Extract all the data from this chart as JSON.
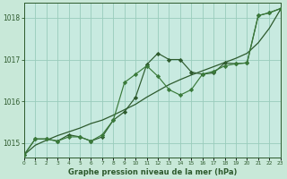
{
  "title": "Graphe pression niveau de la mer (hPa)",
  "background_color": "#c8e8d8",
  "plot_bg_color": "#c8eae0",
  "grid_color": "#99ccbb",
  "line_color_dark": "#2d5a2d",
  "line_color_med": "#3a7a3a",
  "xlim": [
    0,
    23
  ],
  "ylim": [
    1014.65,
    1018.35
  ],
  "yticks": [
    1015,
    1016,
    1017,
    1018
  ],
  "series_smooth_x": [
    0,
    1,
    2,
    3,
    4,
    5,
    6,
    7,
    8,
    9,
    10,
    11,
    12,
    13,
    14,
    15,
    16,
    17,
    18,
    19,
    20,
    21,
    22,
    23
  ],
  "series_smooth_y": [
    1014.72,
    1014.95,
    1015.07,
    1015.18,
    1015.27,
    1015.36,
    1015.47,
    1015.55,
    1015.67,
    1015.8,
    1015.93,
    1016.1,
    1016.25,
    1016.4,
    1016.52,
    1016.63,
    1016.73,
    1016.83,
    1016.93,
    1017.03,
    1017.15,
    1017.4,
    1017.75,
    1018.2
  ],
  "series_marked1_x": [
    0,
    1,
    2,
    3,
    4,
    5,
    6,
    7,
    8,
    9,
    10,
    11,
    12,
    13,
    14,
    15,
    16,
    17,
    18,
    19,
    20,
    21,
    22,
    23
  ],
  "series_marked1_y": [
    1014.72,
    1015.1,
    1015.1,
    1015.05,
    1015.2,
    1015.15,
    1015.05,
    1015.15,
    1015.55,
    1015.75,
    1016.1,
    1016.88,
    1017.15,
    1017.0,
    1017.0,
    1016.7,
    1016.65,
    1016.68,
    1016.92,
    1016.9,
    1016.92,
    1018.05,
    1018.12,
    1018.22
  ],
  "series_marked2_x": [
    0,
    1,
    2,
    3,
    4,
    5,
    6,
    7,
    8,
    9,
    10,
    11,
    12,
    13,
    14,
    15,
    16,
    17,
    18,
    19,
    20,
    21,
    22,
    23
  ],
  "series_marked2_y": [
    1014.72,
    1015.1,
    1015.1,
    1015.05,
    1015.15,
    1015.15,
    1015.05,
    1015.2,
    1015.55,
    1016.45,
    1016.65,
    1016.85,
    1016.6,
    1016.28,
    1016.15,
    1016.28,
    1016.65,
    1016.72,
    1016.85,
    1016.9,
    1016.92,
    1018.05,
    1018.12,
    1018.22
  ]
}
